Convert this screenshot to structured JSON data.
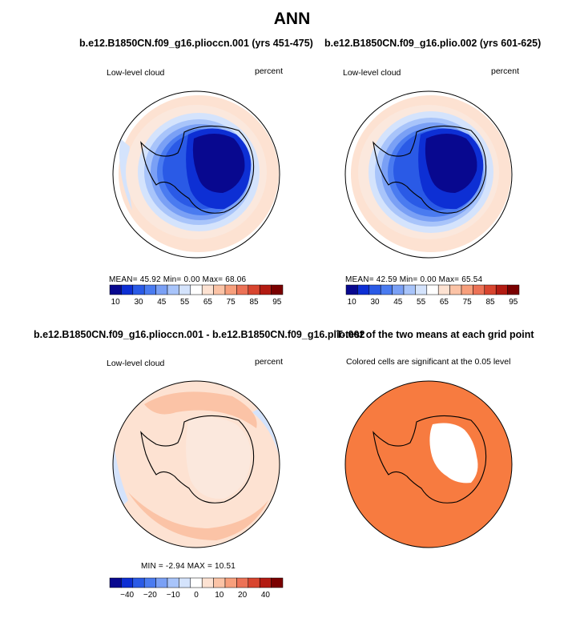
{
  "figure": {
    "title": "ANN"
  },
  "panels": {
    "p1": {
      "title": "b.e12.B1850CN.f09_g16.plioccn.001 (yrs 451-475)",
      "left_label": "Low-level cloud",
      "right_label": "percent",
      "stats": "MEAN=  45.92  Min=   0.00  Max=  68.06"
    },
    "p2": {
      "title": "b.e12.B1850CN.f09_g16.plio.002 (yrs 601-625)",
      "left_label": "Low-level cloud",
      "right_label": "percent",
      "stats": "MEAN=  42.59  Min=   0.00  Max=  65.54"
    },
    "p3": {
      "title": "b.e12.B1850CN.f09_g16.plioccn.001 - b.e12.B1850CN.f09_g16.plio.002",
      "left_label": "Low-level cloud",
      "right_label": "percent",
      "stats": "MIN =  -2.94  MAX =  10.51"
    },
    "p4": {
      "title": "T-test of the two means at each grid point",
      "left_label": "Colored cells are significant at the 0.05 level"
    }
  },
  "chart_data": [
    {
      "type": "heatmap",
      "name_ref": "p1",
      "projection": "south polar stereographic",
      "colorbar": {
        "tick_labels": [
          "10",
          "30",
          "45",
          "55",
          "65",
          "75",
          "85",
          "95"
        ],
        "colors": [
          "#08088f",
          "#0d2fd4",
          "#2a5ae6",
          "#4a7bf0",
          "#7aa0f5",
          "#a8c4fa",
          "#d4e3fc",
          "#ffffff",
          "#fde2d2",
          "#fbc3a6",
          "#f79f7c",
          "#ec7256",
          "#d8452f",
          "#b31b12",
          "#7a0000"
        ]
      },
      "mean": 45.92,
      "min": 0.0,
      "max": 68.06
    },
    {
      "type": "heatmap",
      "name_ref": "p2",
      "projection": "south polar stereographic",
      "colorbar": {
        "tick_labels": [
          "10",
          "30",
          "45",
          "55",
          "65",
          "75",
          "85",
          "95"
        ],
        "colors": [
          "#08088f",
          "#0d2fd4",
          "#2a5ae6",
          "#4a7bf0",
          "#7aa0f5",
          "#a8c4fa",
          "#d4e3fc",
          "#ffffff",
          "#fde2d2",
          "#fbc3a6",
          "#f79f7c",
          "#ec7256",
          "#d8452f",
          "#b31b12",
          "#7a0000"
        ]
      },
      "mean": 42.59,
      "min": 0.0,
      "max": 65.54
    },
    {
      "type": "heatmap",
      "name_ref": "p3",
      "projection": "south polar stereographic",
      "colorbar": {
        "tick_labels": [
          "-40",
          "-20",
          "-10",
          "0",
          "10",
          "20",
          "40"
        ],
        "colors": [
          "#08088f",
          "#0d2fd4",
          "#2a5ae6",
          "#4a7bf0",
          "#7aa0f5",
          "#a8c4fa",
          "#d4e3fc",
          "#ffffff",
          "#fde2d2",
          "#fbc3a6",
          "#f79f7c",
          "#ec7256",
          "#d8452f",
          "#b31b12",
          "#7a0000"
        ]
      },
      "min": -2.94,
      "max": 10.51
    },
    {
      "type": "heatmap",
      "name_ref": "p4",
      "projection": "south polar stereographic",
      "significant_color": "#f77b40",
      "not_significant_color": "#ffffff"
    }
  ],
  "colors": {
    "deep_blue": "#08088f",
    "mid_blue": "#2a5ae6",
    "light_blue": "#a8c4fa",
    "pale_peach": "#fde2d2",
    "salmon": "#fbc3a6",
    "ttest_orange": "#f77b40"
  }
}
